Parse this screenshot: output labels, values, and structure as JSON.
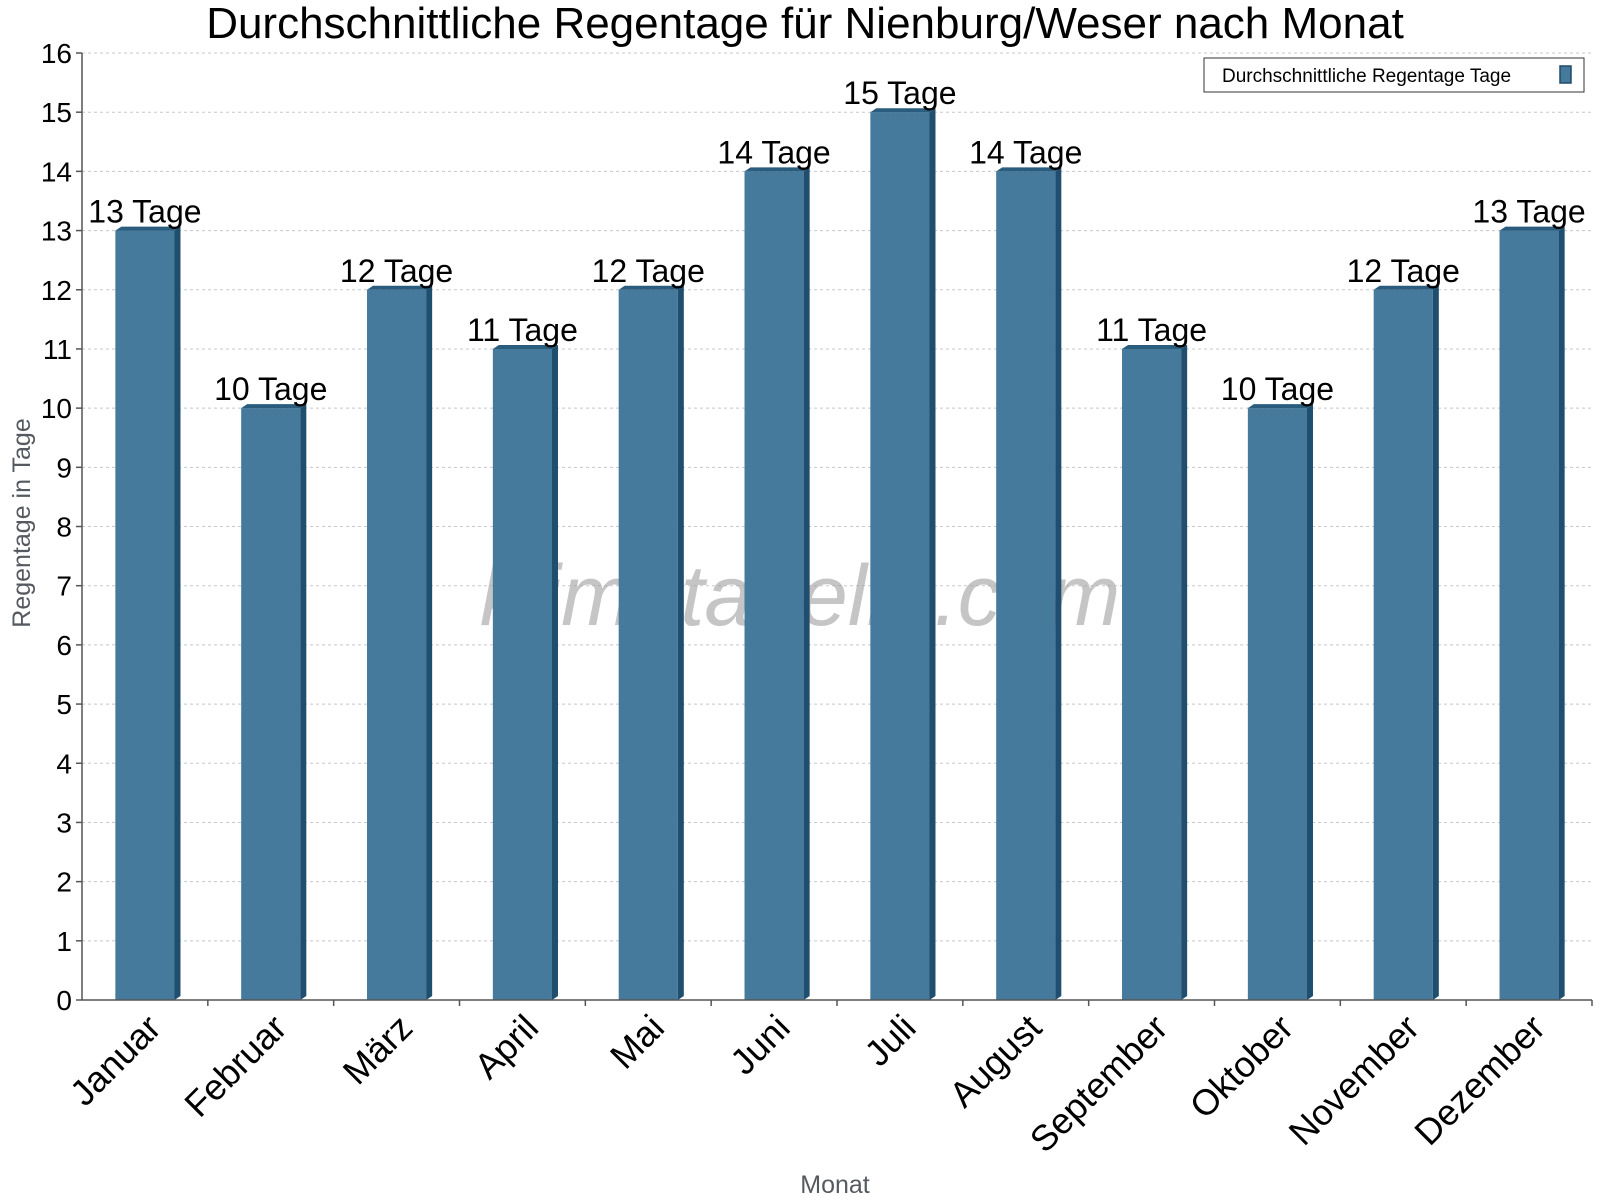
{
  "chart_data": {
    "type": "bar",
    "title": "Durchschnittliche Regentage für Nienburg/Weser nach Monat",
    "xlabel": "Monat",
    "ylabel": "Regentage in Tage",
    "ylim": [
      0,
      16
    ],
    "yticks": [
      0,
      1,
      2,
      3,
      4,
      5,
      6,
      7,
      8,
      9,
      10,
      11,
      12,
      13,
      14,
      15,
      16
    ],
    "grid": true,
    "legend_position": "top-right",
    "categories": [
      "Januar",
      "Februar",
      "März",
      "April",
      "Mai",
      "Juni",
      "Juli",
      "August",
      "September",
      "Oktober",
      "November",
      "Dezember"
    ],
    "series": [
      {
        "name": "Durchschnittliche Regentage Tage",
        "color": "#467a9c",
        "values": [
          13,
          10,
          12,
          11,
          12,
          14,
          15,
          14,
          11,
          10,
          12,
          13
        ],
        "labels": [
          "13 Tage",
          "10 Tage",
          "12 Tage",
          "11 Tage",
          "12 Tage",
          "14 Tage",
          "15 Tage",
          "14 Tage",
          "11 Tage",
          "10 Tage",
          "12 Tage",
          "13 Tage"
        ]
      }
    ],
    "watermark": "klimatabelle.com"
  }
}
